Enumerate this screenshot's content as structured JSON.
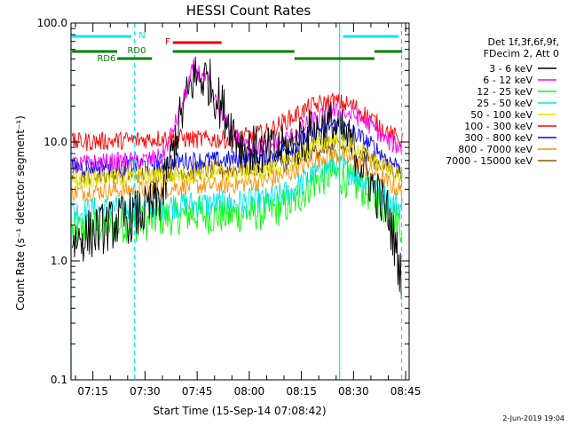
{
  "title": "HESSI Count Rates",
  "xlabel": "Start Time (15-Sep-14 07:08:42)",
  "ylabel": "Count Rate (s⁻¹ detector segment⁻¹)",
  "footer": "2-Jun-2019 19:04",
  "legend": {
    "header_line1": "Det 1f,3f,6f,9f,",
    "header_line2": "FDecim 2, Att 0"
  },
  "flags": [
    {
      "label": "N",
      "color": "#00e5ff"
    },
    {
      "label": "F",
      "color": "#e00000"
    },
    {
      "label": "RD0",
      "color": "#008000"
    },
    {
      "label": "RD6",
      "color": "#008000"
    }
  ],
  "chart_data": {
    "type": "line",
    "title": "HESSI Count Rates",
    "xlabel": "Start Time (15-Sep-14 07:08:42)",
    "ylabel": "Count Rate (s⁻¹ detector segment⁻¹)",
    "yscale": "log",
    "xlim": [
      "07:08:42",
      "08:46:00"
    ],
    "ylim": [
      0.1,
      100.0
    ],
    "x_ticks": [
      "07:15",
      "07:30",
      "07:45",
      "08:00",
      "08:15",
      "08:30",
      "08:45"
    ],
    "y_ticks": [
      "0.1",
      "1.0",
      "10.0",
      "100.0"
    ],
    "x": [
      "07:10",
      "07:20",
      "07:30",
      "07:35",
      "07:40",
      "07:44",
      "07:48",
      "07:52",
      "07:58",
      "08:05",
      "08:12",
      "08:18",
      "08:24",
      "08:30",
      "08:36",
      "08:40",
      "08:44"
    ],
    "series": [
      {
        "name": "3 - 6 keV",
        "color": "#000000",
        "values": [
          1.5,
          2.0,
          2.6,
          3.5,
          15,
          35,
          34,
          20,
          9,
          8,
          9,
          12,
          14,
          9,
          4,
          2.5,
          0.7
        ]
      },
      {
        "name": "6 - 12 keV",
        "color": "#ff00ff",
        "values": [
          6.5,
          6.8,
          7.0,
          7.5,
          18,
          42,
          33,
          16,
          9.5,
          9.0,
          11,
          15,
          18,
          17,
          13,
          10,
          9
        ]
      },
      {
        "name": "12 - 25 keV",
        "color": "#00ff00",
        "values": [
          1.8,
          2.0,
          2.1,
          2.3,
          2.4,
          2.5,
          2.4,
          2.4,
          2.5,
          2.6,
          3.0,
          4.5,
          5.5,
          4.5,
          3.5,
          2.6,
          2.0
        ]
      },
      {
        "name": "25 - 50 keV",
        "color": "#00e5e5",
        "values": [
          2.6,
          2.7,
          2.8,
          2.9,
          3.0,
          3.0,
          3.0,
          3.0,
          3.1,
          3.2,
          3.8,
          5.2,
          6.5,
          5.5,
          4.2,
          3.2,
          2.8
        ]
      },
      {
        "name": "50 - 100 keV",
        "color": "#e5e500",
        "values": [
          4.8,
          5.0,
          5.1,
          5.2,
          5.3,
          5.4,
          5.4,
          5.5,
          5.6,
          5.8,
          6.8,
          9.0,
          10.5,
          9.0,
          7.0,
          5.8,
          5.0
        ]
      },
      {
        "name": "100 - 300 keV",
        "color": "#ff0000",
        "values": [
          10,
          10.2,
          10.5,
          10.8,
          10.8,
          10.5,
          10.5,
          10.5,
          11,
          12,
          16,
          20,
          22,
          20,
          15,
          12,
          10
        ]
      },
      {
        "name": "300 - 800 keV",
        "color": "#0000ff",
        "values": [
          6.2,
          6.3,
          6.5,
          6.7,
          6.9,
          7.0,
          7.0,
          7.0,
          7.2,
          7.5,
          9.0,
          12,
          14,
          12,
          9.0,
          7.0,
          6.0
        ]
      },
      {
        "name": "800 - 7000 keV",
        "color": "#ff8c00",
        "values": [
          3.8,
          3.9,
          4.0,
          4.1,
          4.2,
          4.3,
          4.3,
          4.3,
          4.5,
          4.7,
          5.5,
          7.0,
          8.0,
          7.0,
          5.5,
          4.5,
          3.8
        ]
      },
      {
        "name": "7000 - 15000 keV",
        "color": "#8b5a00",
        "values": [
          5.2,
          5.3,
          5.4,
          5.5,
          5.6,
          5.7,
          5.8,
          5.8,
          6.0,
          6.2,
          7.0,
          8.5,
          9.5,
          8.5,
          7.0,
          6.0,
          5.5
        ]
      }
    ],
    "vertical_markers": [
      {
        "time": "07:08:42",
        "style": "solid",
        "color": "#00e5ff"
      },
      {
        "time": "07:27:00",
        "style": "dashed",
        "color": "#00e5ff"
      },
      {
        "time": "08:26:00",
        "style": "solid",
        "color": "#00e5ff"
      },
      {
        "time": "08:43:50",
        "style": "dashed",
        "color": "#00e5ff"
      }
    ],
    "flag_bars": [
      {
        "label": "N",
        "color": "#00e5ff",
        "start": "07:09",
        "end": "07:26",
        "level": 1
      },
      {
        "label": "N",
        "color": "#00e5ff",
        "start": "08:27",
        "end": "08:43",
        "level": 1
      },
      {
        "label": "F",
        "color": "#e00000",
        "start": "07:38",
        "end": "07:52",
        "level": 2
      },
      {
        "label": "RD0",
        "color": "#008000",
        "start": "07:09",
        "end": "07:22",
        "level": 3
      },
      {
        "label": "RD0",
        "color": "#008000",
        "start": "07:38",
        "end": "08:13",
        "level": 3
      },
      {
        "label": "RD0",
        "color": "#008000",
        "start": "08:36",
        "end": "08:44",
        "level": 3
      },
      {
        "label": "RD6",
        "color": "#008000",
        "start": "07:22",
        "end": "07:32",
        "level": 4
      },
      {
        "label": "RD6",
        "color": "#008000",
        "start": "08:13",
        "end": "08:36",
        "level": 4
      }
    ]
  }
}
